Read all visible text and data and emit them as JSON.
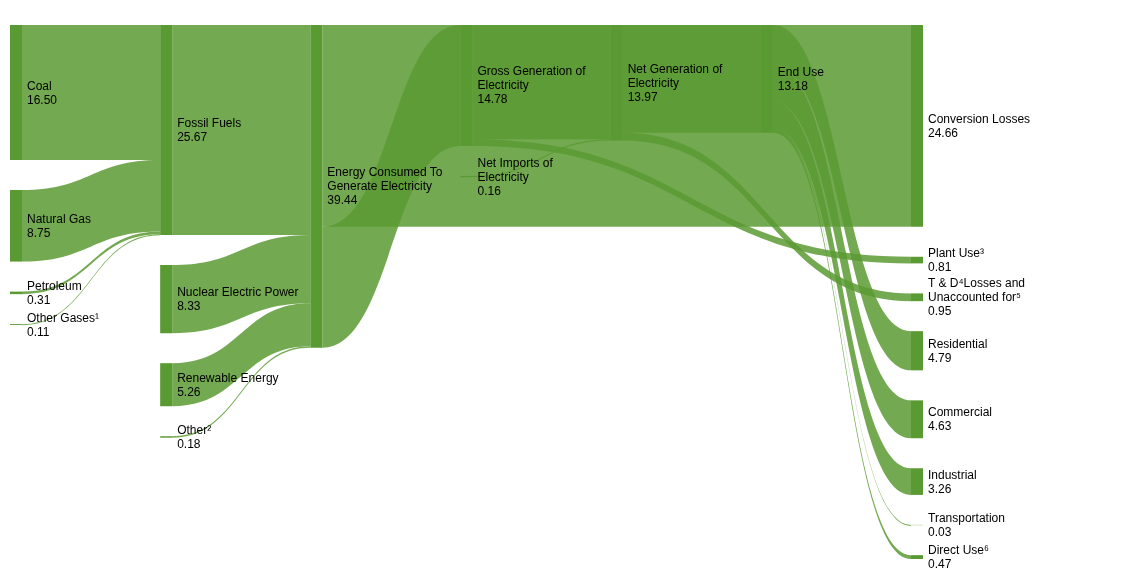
{
  "chart_data": {
    "type": "other",
    "color": "#5a9a32",
    "categories": [
      "Coal",
      "Natural Gas",
      "Petroleum",
      "Other Gases¹",
      "Nuclear Electric Power",
      "Renewable Energy",
      "Other²",
      "Net Imports of Electricity",
      "Fossil Fuels",
      "Energy Consumed To Generate Electricity",
      "Conversion Losses",
      "Gross Generation of Electricity",
      "Plant Use³",
      "Net Generation of Electricity",
      "T & D⁴Losses and Unaccounted for⁵",
      "End Use",
      "Residential",
      "Commercial",
      "Industrial",
      "Transportation",
      "Direct Use⁶"
    ],
    "values": [
      16.5,
      8.75,
      0.31,
      0.11,
      8.33,
      5.26,
      0.18,
      0.16,
      25.67,
      39.44,
      24.66,
      14.78,
      0.81,
      13.97,
      0.95,
      13.18,
      4.79,
      4.63,
      3.26,
      0.03,
      0.47
    ],
    "value_labels": [
      "16.50",
      "8.75",
      "0.31",
      "0.11",
      "8.33",
      "5.26",
      "0.18",
      "0.16",
      "25.67",
      "39.44",
      "24.66",
      "14.78",
      "0.81",
      "13.97",
      "0.95",
      "13.18",
      "4.79",
      "4.63",
      "3.26",
      "0.03",
      "0.47"
    ]
  }
}
